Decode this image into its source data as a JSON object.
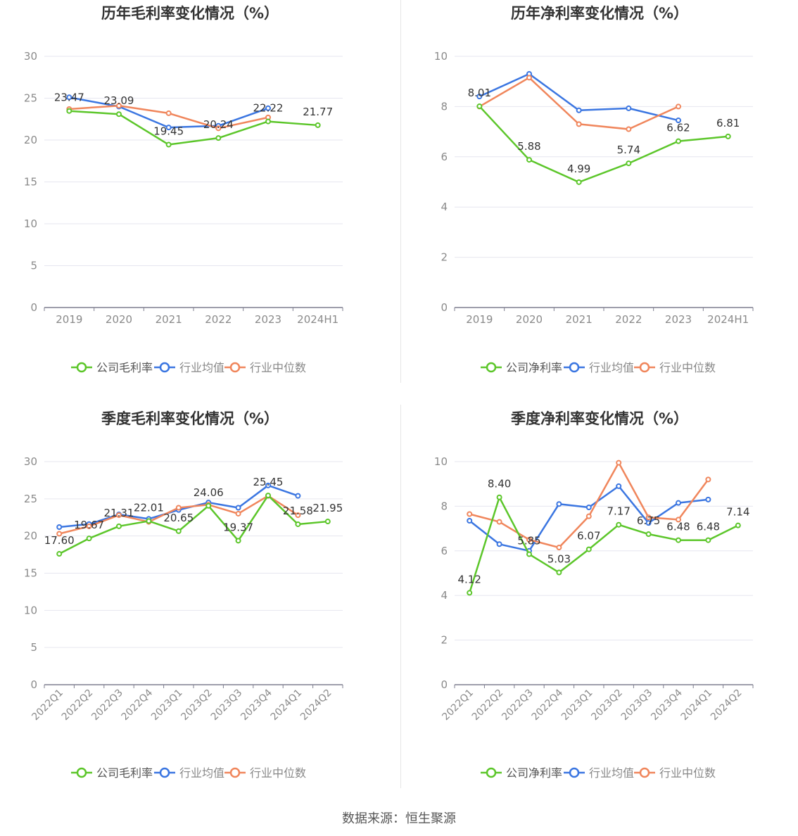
{
  "source": "数据来源：恒生聚源",
  "colors": {
    "company": "#5cc62a",
    "avg": "#3b76e1",
    "median": "#f0865c",
    "grid": "#e6e6ef",
    "axis": "#7f7f8f",
    "tick": "#8a8a8a",
    "label": "#333333",
    "title": "#333333"
  },
  "chart_data": [
    {
      "type": "line",
      "title": "历年毛利率变化情况（%）",
      "categories": [
        "2019",
        "2020",
        "2021",
        "2022",
        "2023",
        "2024H1"
      ],
      "ylim": [
        0,
        30
      ],
      "yticks": [
        "0",
        "5",
        "10",
        "15",
        "20",
        "25",
        "30"
      ],
      "series": [
        {
          "name": "公司毛利率",
          "key": "company",
          "values": [
            23.47,
            23.09,
            19.45,
            20.24,
            22.22,
            21.77
          ],
          "labels": [
            "23.47",
            "23.09",
            "19.45",
            "20.24",
            "22.22",
            "21.77"
          ]
        },
        {
          "name": "行业均值",
          "key": "avg",
          "values": [
            25.1,
            24.0,
            21.5,
            21.7,
            23.8,
            null
          ]
        },
        {
          "name": "行业中位数",
          "key": "median",
          "values": [
            23.7,
            24.1,
            23.2,
            21.4,
            22.7,
            null
          ]
        }
      ],
      "grid": true,
      "legend": "bottom-center"
    },
    {
      "type": "line",
      "title": "历年净利率变化情况（%）",
      "categories": [
        "2019",
        "2020",
        "2021",
        "2022",
        "2023",
        "2024H1"
      ],
      "ylim": [
        0,
        10
      ],
      "yticks": [
        "0",
        "2",
        "4",
        "6",
        "8",
        "10"
      ],
      "series": [
        {
          "name": "公司净利率",
          "key": "company",
          "values": [
            8.01,
            5.88,
            4.99,
            5.74,
            6.62,
            6.81
          ],
          "labels": [
            "8.01",
            "5.88",
            "4.99",
            "5.74",
            "6.62",
            "6.81"
          ]
        },
        {
          "name": "行业均值",
          "key": "avg",
          "values": [
            8.4,
            9.3,
            7.85,
            7.93,
            7.45,
            null
          ]
        },
        {
          "name": "行业中位数",
          "key": "median",
          "values": [
            8.0,
            9.15,
            7.3,
            7.1,
            8.0,
            null
          ]
        }
      ],
      "grid": true,
      "legend": "bottom-center"
    },
    {
      "type": "line",
      "title": "季度毛利率变化情况（%）",
      "categories": [
        "2022Q1",
        "2022Q2",
        "2022Q3",
        "2022Q4",
        "2023Q1",
        "2023Q2",
        "2023Q3",
        "2023Q4",
        "2024Q1",
        "2024Q2"
      ],
      "ylim": [
        0,
        30
      ],
      "yticks": [
        "0",
        "5",
        "10",
        "15",
        "20",
        "25",
        "30"
      ],
      "series": [
        {
          "name": "公司毛利率",
          "key": "company",
          "values": [
            17.6,
            19.67,
            21.31,
            22.01,
            20.65,
            24.06,
            19.37,
            25.45,
            21.58,
            21.95
          ],
          "labels": [
            "17.60",
            "19.67",
            "21.31",
            "22.01",
            "20.65",
            "24.06",
            "19.37",
            "25.45",
            "21.58",
            "21.95"
          ]
        },
        {
          "name": "行业均值",
          "key": "avg",
          "values": [
            21.2,
            21.6,
            22.9,
            22.3,
            23.5,
            24.5,
            23.8,
            26.8,
            25.4,
            null
          ]
        },
        {
          "name": "行业中位数",
          "key": "median",
          "values": [
            20.3,
            21.3,
            22.8,
            21.9,
            23.8,
            24.2,
            23.0,
            25.4,
            22.8,
            null
          ]
        }
      ],
      "grid": true,
      "legend": "bottom-center"
    },
    {
      "type": "line",
      "title": "季度净利率变化情况（%）",
      "categories": [
        "2022Q1",
        "2022Q2",
        "2022Q3",
        "2022Q4",
        "2023Q1",
        "2023Q2",
        "2023Q3",
        "2023Q4",
        "2024Q1",
        "2024Q2"
      ],
      "ylim": [
        0,
        10
      ],
      "yticks": [
        "0",
        "2",
        "4",
        "6",
        "8",
        "10"
      ],
      "series": [
        {
          "name": "公司净利率",
          "key": "company",
          "values": [
            4.12,
            8.4,
            5.85,
            5.03,
            6.07,
            7.17,
            6.75,
            6.48,
            6.48,
            7.14
          ],
          "labels": [
            "4.12",
            "8.40",
            "5.85",
            "5.03",
            "6.07",
            "7.17",
            "6.75",
            "6.48",
            "6.48",
            "7.14"
          ]
        },
        {
          "name": "行业均值",
          "key": "avg",
          "values": [
            7.35,
            6.3,
            6.0,
            8.1,
            7.95,
            8.9,
            7.25,
            8.15,
            8.3,
            null
          ]
        },
        {
          "name": "行业中位数",
          "key": "median",
          "values": [
            7.65,
            7.3,
            6.5,
            6.15,
            7.55,
            9.95,
            7.5,
            7.4,
            9.2,
            null
          ]
        }
      ],
      "grid": true,
      "legend": "bottom-center"
    }
  ]
}
